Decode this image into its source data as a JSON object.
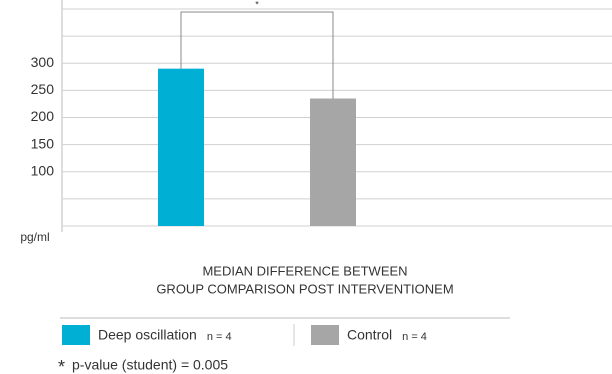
{
  "chart_data": {
    "type": "bar",
    "title_lines": [
      "MEDIAN DIFFERENCE BETWEEN",
      "GROUP COMPARISON POST INTERVENTIONEM"
    ],
    "y_unit": "pg/ml",
    "series": [
      {
        "name": "Deep oscillation",
        "n": "n = 4",
        "color": "#00b0d4",
        "values": [
          290
        ]
      },
      {
        "name": "Control",
        "n": "n = 4",
        "color": "#a6a6a6",
        "values": [
          235
        ]
      }
    ],
    "ylim": [
      0,
      400
    ],
    "yticks": [
      100,
      150,
      200,
      250,
      300
    ],
    "gridlines": [
      0,
      50,
      100,
      150,
      200,
      250,
      300,
      350,
      400
    ],
    "significance_marker": "*",
    "footnote_marker": "*",
    "footnote": "p-value (student) = 0.005"
  }
}
